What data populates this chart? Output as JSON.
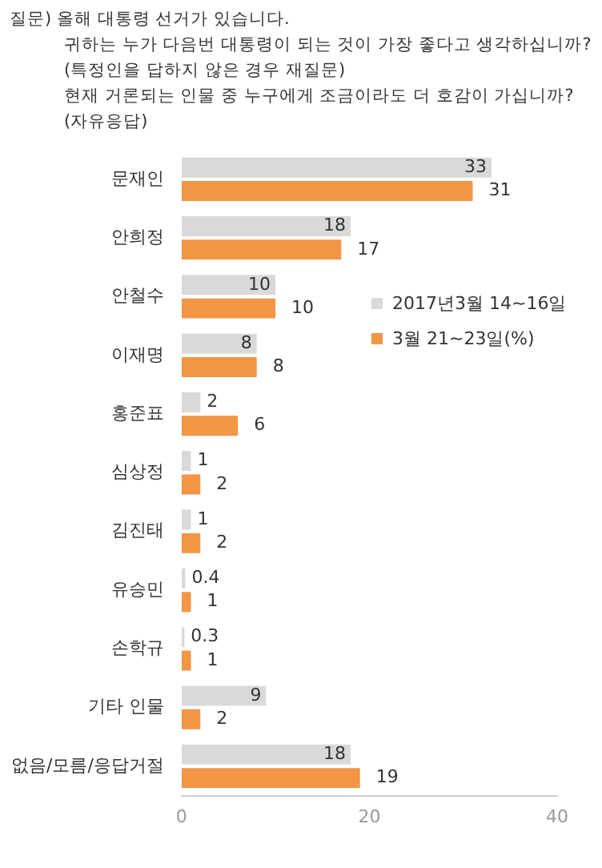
{
  "chart_data": {
    "type": "bar",
    "orientation": "horizontal",
    "title": "질문) 올해 대통령 선거가 있습니다.",
    "subtitle": "귀하는 누가 다음번 대통령이 되는 것이 가장 좋다고 생각하십니까?\n(특정인을 답하지 않은 경우 재질문)\n현재 거론되는 인물 중 누구에게 조금이라도 더 호감이 가십니까? (자유응답)",
    "categories": [
      "문재인",
      "안희정",
      "안철수",
      "이재명",
      "홍준표",
      "심상정",
      "김진태",
      "유승민",
      "손학규",
      "기타 인물",
      "없음/모름/응답거절"
    ],
    "series": [
      {
        "name": "2017년3월 14~16일",
        "color": "#d9d9d9",
        "values": [
          33,
          18,
          10,
          8,
          2,
          1,
          1,
          0.4,
          0.3,
          9,
          18
        ]
      },
      {
        "name": "3월 21~23일(%)",
        "color": "#f29544",
        "values": [
          31,
          17,
          10,
          8,
          6,
          2,
          2,
          1,
          1,
          2,
          19
        ]
      }
    ],
    "xlim": [
      0,
      40
    ],
    "xticks": [
      0,
      20,
      40
    ],
    "grid": false,
    "legend": "right",
    "data_labels": true
  }
}
